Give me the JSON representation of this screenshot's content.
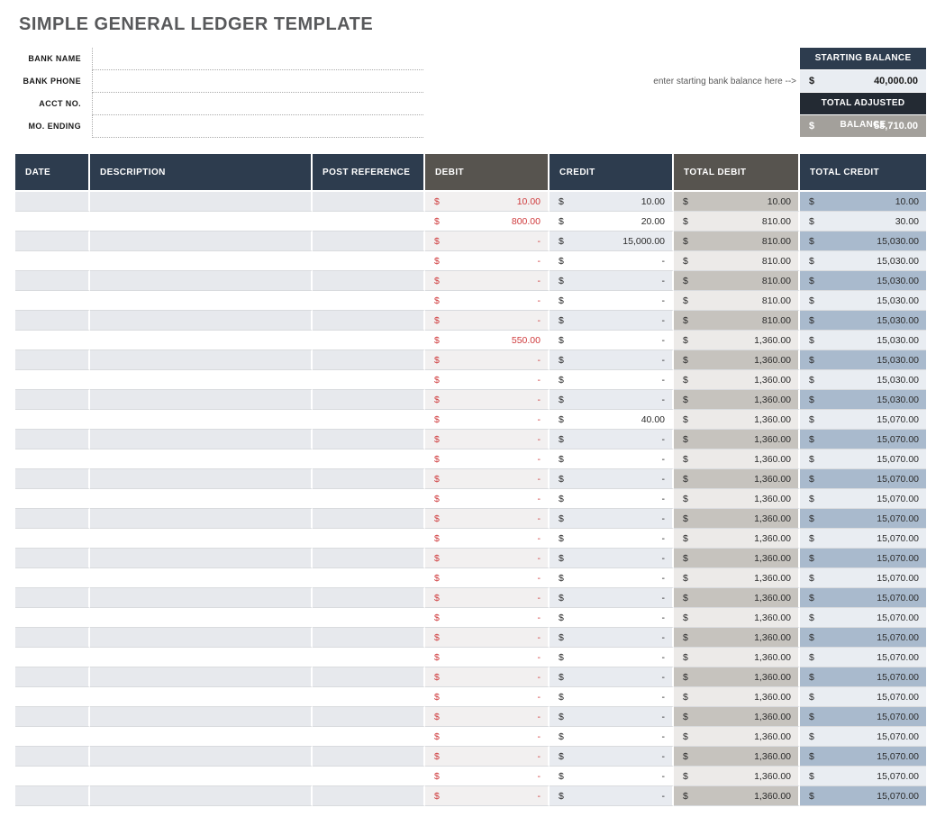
{
  "page": {
    "title": "SIMPLE GENERAL LEDGER TEMPLATE"
  },
  "form": {
    "fields": [
      {
        "label": "BANK NAME",
        "value": ""
      },
      {
        "label": "BANK PHONE",
        "value": ""
      },
      {
        "label": "ACCT NO.",
        "value": ""
      },
      {
        "label": "MO. ENDING",
        "value": ""
      }
    ]
  },
  "balance_box": {
    "hint": "enter starting bank balance here -->",
    "starting_balance": {
      "label": "STARTING BALANCE",
      "currency": "$",
      "value": "40,000.00"
    },
    "total_adjusted_balance": {
      "label": "TOTAL ADJUSTED BALANCE",
      "currency": "$",
      "value": "53,710.00"
    }
  },
  "ledger_table": {
    "columns": [
      "DATE",
      "DESCRIPTION",
      "POST REFERENCE",
      "DEBIT",
      "CREDIT",
      "TOTAL DEBIT",
      "TOTAL CREDIT"
    ],
    "currency": "$",
    "rows": [
      {
        "date": "",
        "description": "",
        "post_reference": "",
        "debit": "10.00",
        "credit": "10.00",
        "total_debit": "10.00",
        "total_credit": "10.00"
      },
      {
        "date": "",
        "description": "",
        "post_reference": "",
        "debit": "800.00",
        "credit": "20.00",
        "total_debit": "810.00",
        "total_credit": "30.00"
      },
      {
        "date": "",
        "description": "",
        "post_reference": "",
        "debit": "-",
        "credit": "15,000.00",
        "total_debit": "810.00",
        "total_credit": "15,030.00"
      },
      {
        "date": "",
        "description": "",
        "post_reference": "",
        "debit": "-",
        "credit": "-",
        "total_debit": "810.00",
        "total_credit": "15,030.00"
      },
      {
        "date": "",
        "description": "",
        "post_reference": "",
        "debit": "-",
        "credit": "-",
        "total_debit": "810.00",
        "total_credit": "15,030.00"
      },
      {
        "date": "",
        "description": "",
        "post_reference": "",
        "debit": "-",
        "credit": "-",
        "total_debit": "810.00",
        "total_credit": "15,030.00"
      },
      {
        "date": "",
        "description": "",
        "post_reference": "",
        "debit": "-",
        "credit": "-",
        "total_debit": "810.00",
        "total_credit": "15,030.00"
      },
      {
        "date": "",
        "description": "",
        "post_reference": "",
        "debit": "550.00",
        "credit": "-",
        "total_debit": "1,360.00",
        "total_credit": "15,030.00"
      },
      {
        "date": "",
        "description": "",
        "post_reference": "",
        "debit": "-",
        "credit": "-",
        "total_debit": "1,360.00",
        "total_credit": "15,030.00"
      },
      {
        "date": "",
        "description": "",
        "post_reference": "",
        "debit": "-",
        "credit": "-",
        "total_debit": "1,360.00",
        "total_credit": "15,030.00"
      },
      {
        "date": "",
        "description": "",
        "post_reference": "",
        "debit": "-",
        "credit": "-",
        "total_debit": "1,360.00",
        "total_credit": "15,030.00"
      },
      {
        "date": "",
        "description": "",
        "post_reference": "",
        "debit": "-",
        "credit": "40.00",
        "total_debit": "1,360.00",
        "total_credit": "15,070.00"
      },
      {
        "date": "",
        "description": "",
        "post_reference": "",
        "debit": "-",
        "credit": "-",
        "total_debit": "1,360.00",
        "total_credit": "15,070.00"
      },
      {
        "date": "",
        "description": "",
        "post_reference": "",
        "debit": "-",
        "credit": "-",
        "total_debit": "1,360.00",
        "total_credit": "15,070.00"
      },
      {
        "date": "",
        "description": "",
        "post_reference": "",
        "debit": "-",
        "credit": "-",
        "total_debit": "1,360.00",
        "total_credit": "15,070.00"
      },
      {
        "date": "",
        "description": "",
        "post_reference": "",
        "debit": "-",
        "credit": "-",
        "total_debit": "1,360.00",
        "total_credit": "15,070.00"
      },
      {
        "date": "",
        "description": "",
        "post_reference": "",
        "debit": "-",
        "credit": "-",
        "total_debit": "1,360.00",
        "total_credit": "15,070.00"
      },
      {
        "date": "",
        "description": "",
        "post_reference": "",
        "debit": "-",
        "credit": "-",
        "total_debit": "1,360.00",
        "total_credit": "15,070.00"
      },
      {
        "date": "",
        "description": "",
        "post_reference": "",
        "debit": "-",
        "credit": "-",
        "total_debit": "1,360.00",
        "total_credit": "15,070.00"
      },
      {
        "date": "",
        "description": "",
        "post_reference": "",
        "debit": "-",
        "credit": "-",
        "total_debit": "1,360.00",
        "total_credit": "15,070.00"
      },
      {
        "date": "",
        "description": "",
        "post_reference": "",
        "debit": "-",
        "credit": "-",
        "total_debit": "1,360.00",
        "total_credit": "15,070.00"
      },
      {
        "date": "",
        "description": "",
        "post_reference": "",
        "debit": "-",
        "credit": "-",
        "total_debit": "1,360.00",
        "total_credit": "15,070.00"
      },
      {
        "date": "",
        "description": "",
        "post_reference": "",
        "debit": "-",
        "credit": "-",
        "total_debit": "1,360.00",
        "total_credit": "15,070.00"
      },
      {
        "date": "",
        "description": "",
        "post_reference": "",
        "debit": "-",
        "credit": "-",
        "total_debit": "1,360.00",
        "total_credit": "15,070.00"
      },
      {
        "date": "",
        "description": "",
        "post_reference": "",
        "debit": "-",
        "credit": "-",
        "total_debit": "1,360.00",
        "total_credit": "15,070.00"
      },
      {
        "date": "",
        "description": "",
        "post_reference": "",
        "debit": "-",
        "credit": "-",
        "total_debit": "1,360.00",
        "total_credit": "15,070.00"
      },
      {
        "date": "",
        "description": "",
        "post_reference": "",
        "debit": "-",
        "credit": "-",
        "total_debit": "1,360.00",
        "total_credit": "15,070.00"
      },
      {
        "date": "",
        "description": "",
        "post_reference": "",
        "debit": "-",
        "credit": "-",
        "total_debit": "1,360.00",
        "total_credit": "15,070.00"
      },
      {
        "date": "",
        "description": "",
        "post_reference": "",
        "debit": "-",
        "credit": "-",
        "total_debit": "1,360.00",
        "total_credit": "15,070.00"
      },
      {
        "date": "",
        "description": "",
        "post_reference": "",
        "debit": "-",
        "credit": "-",
        "total_debit": "1,360.00",
        "total_credit": "15,070.00"
      },
      {
        "date": "",
        "description": "",
        "post_reference": "",
        "debit": "-",
        "credit": "-",
        "total_debit": "1,360.00",
        "total_credit": "15,070.00"
      }
    ]
  },
  "colors": {
    "header_navy": "#2d3c4e",
    "header_gray": "#57544f",
    "debit_red": "#cf3a3c",
    "row_shade": "#e7e9ed",
    "total_debit_shade": "#c6c3be",
    "total_credit_shade": "#a9bacd",
    "adjusted_header_bg": "#232a33",
    "adjusted_value_bg": "#a3a09b",
    "starting_value_bg": "#e9edf2"
  }
}
